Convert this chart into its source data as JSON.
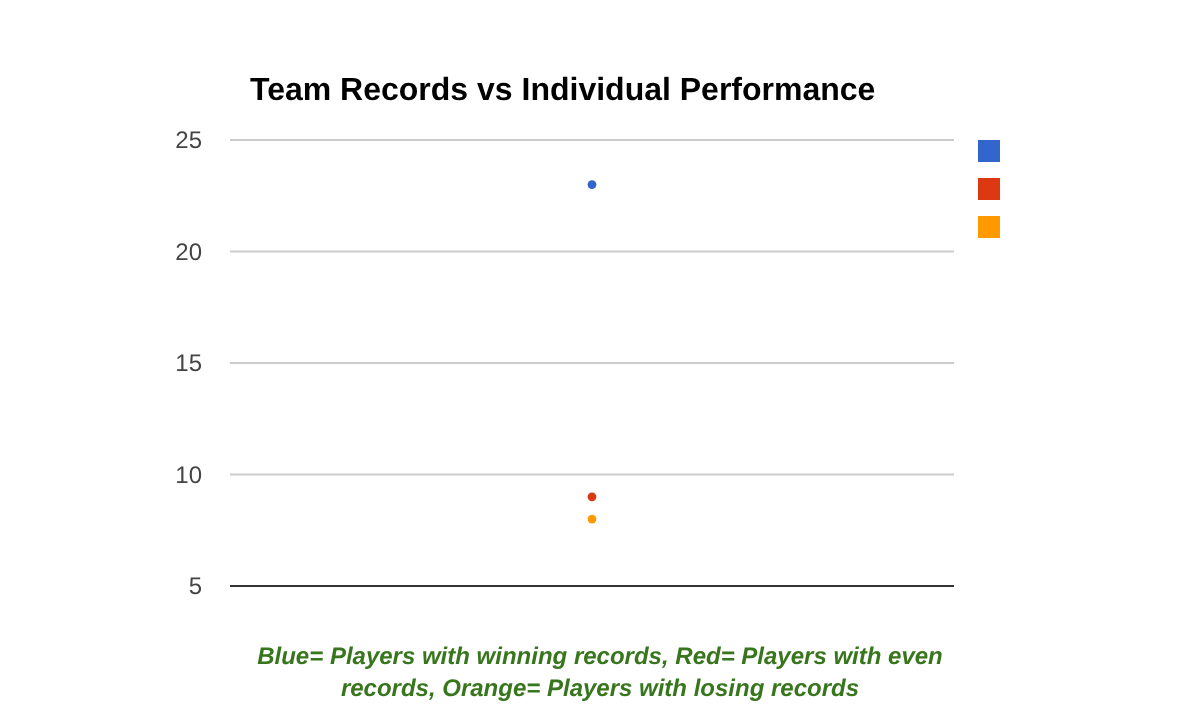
{
  "chart_data": {
    "type": "scatter",
    "title": "Team Records vs Individual Performance",
    "categories": [
      null
    ],
    "series": [
      {
        "color": "#3366cc",
        "values": [
          23
        ]
      },
      {
        "color": "#dc3912",
        "values": [
          9
        ]
      },
      {
        "color": "#ff9900",
        "values": [
          8
        ]
      }
    ],
    "ylim": [
      5,
      25
    ],
    "yticks": [
      5,
      10,
      15,
      20,
      25
    ],
    "grid": "y",
    "marker": "circle",
    "annotations": [
      "Blue= Players with winning records, Red= Players with even records, Orange= Players with losing records"
    ]
  }
}
